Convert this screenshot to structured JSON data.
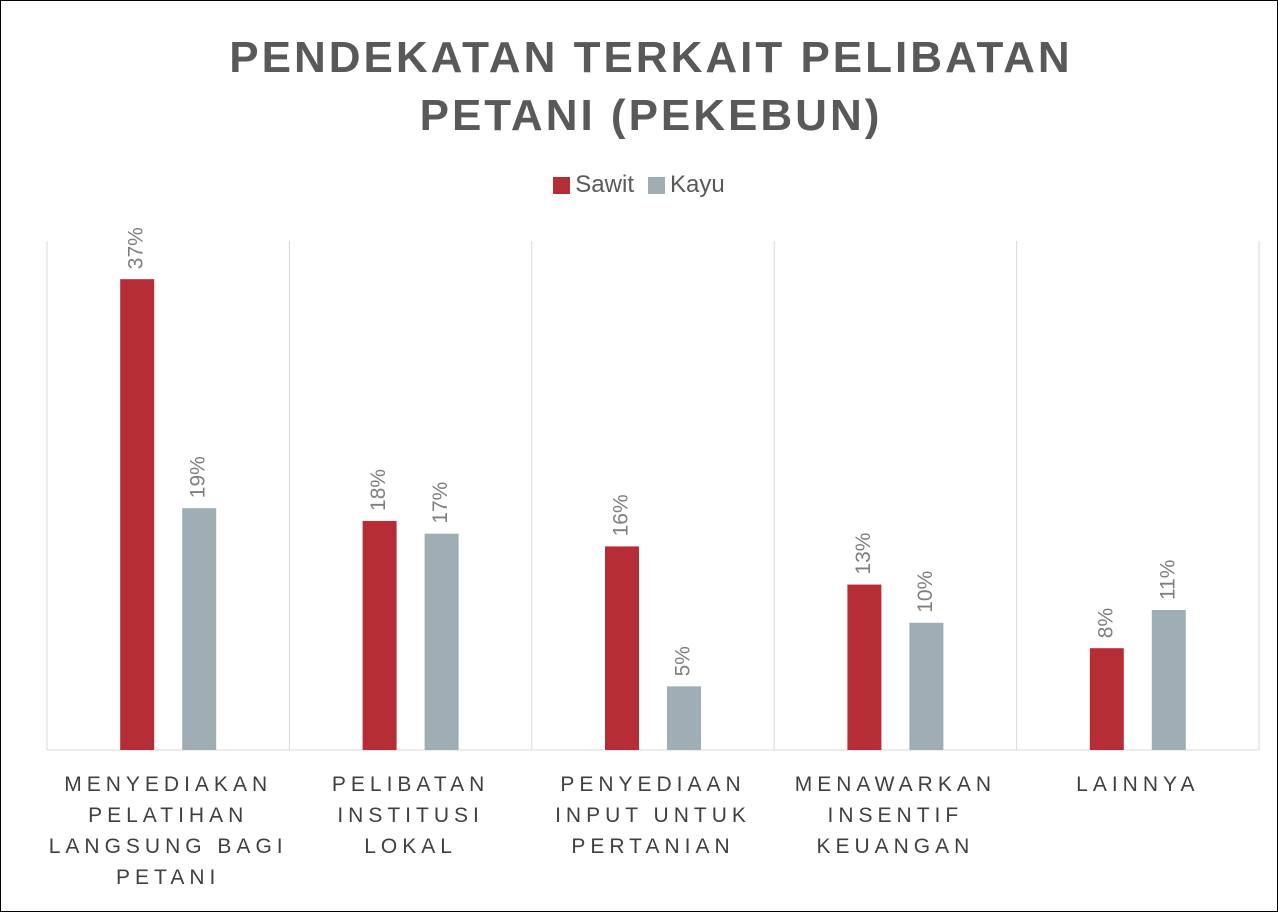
{
  "chart_data": {
    "type": "bar",
    "title": "PENDEKATAN TERKAIT PELIBATAN PETANI (PEKEBUN)",
    "categories": [
      "MENYEDIAKAN PELATIHAN LANGSUNG BAGI PETANI",
      "PELIBATAN INSTITUSI LOKAL",
      "PENYEDIAAN INPUT UNTUK PERTANIAN",
      "MENAWARKAN INSENTIF KEUANGAN",
      "LAINNYA"
    ],
    "series": [
      {
        "name": "Sawit",
        "color": "#b72d35",
        "values": [
          37,
          18,
          16,
          13,
          8
        ],
        "value_labels": [
          "37%",
          "18%",
          "16%",
          "13%",
          "8%"
        ]
      },
      {
        "name": "Kayu",
        "color": "#9eaeb4",
        "values": [
          19,
          17,
          5,
          10,
          11
        ],
        "value_labels": [
          "19%",
          "17%",
          "5%",
          "10%",
          "11%"
        ]
      }
    ],
    "ylim": [
      0,
      40
    ],
    "legend": "top"
  }
}
